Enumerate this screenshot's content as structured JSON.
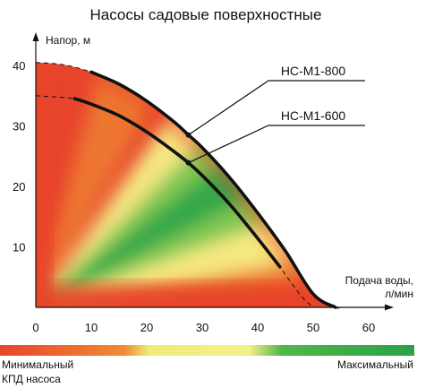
{
  "chart_data": {
    "type": "line",
    "title": "Насосы садовые поверхностные",
    "ylabel": "Напор, м",
    "xlabel_line1": "Подача воды,",
    "xlabel_line2": "л/мин",
    "xlim": [
      0,
      60
    ],
    "ylim": [
      0,
      40
    ],
    "x_ticks": [
      "0",
      "10",
      "20",
      "30",
      "40",
      "50",
      "60"
    ],
    "y_ticks": [
      "10",
      "20",
      "30",
      "40"
    ],
    "grid": false,
    "series": [
      {
        "name": "НС-М1-800",
        "solid_range": [
          8,
          54
        ],
        "x": [
          0,
          5,
          10,
          15,
          20,
          25,
          27.5,
          30,
          35,
          40,
          45,
          50,
          54,
          55,
          58
        ],
        "y": [
          40.5,
          40.1,
          38.9,
          36.9,
          34.1,
          30.6,
          28.5,
          26.4,
          21.4,
          15.6,
          9.3,
          2.2,
          0,
          0,
          0
        ]
      },
      {
        "name": "НС-М1-600",
        "solid_range": [
          7,
          44
        ],
        "x": [
          0,
          7,
          10,
          15,
          20,
          25,
          27.5,
          30,
          35,
          40,
          44,
          45,
          48,
          50
        ],
        "y": [
          35,
          34.5,
          33.6,
          31.7,
          29.0,
          25.7,
          23.9,
          21.8,
          17.0,
          11.4,
          6.7,
          5.4,
          1.7,
          0
        ]
      }
    ],
    "legend_gradient": {
      "colors": [
        "#e8452c",
        "#f08a34",
        "#eded77",
        "#f5f08a",
        "#4fb848",
        "#2aa148"
      ],
      "min_label_line1": "Минимальный",
      "min_label_line2": "КПД насоса",
      "max_label": "Максимальный"
    }
  }
}
